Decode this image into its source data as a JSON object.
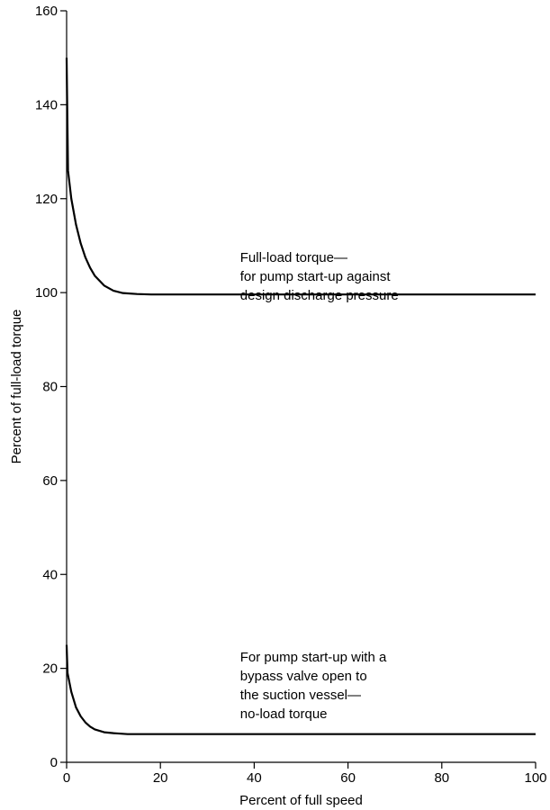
{
  "chart_data": {
    "type": "line",
    "title": "",
    "xlabel": "Percent of full speed",
    "ylabel": "Percent of full-load torque",
    "xlim": [
      0,
      100
    ],
    "ylim": [
      0,
      160
    ],
    "x_ticks": [
      0,
      20,
      40,
      60,
      80,
      100
    ],
    "y_ticks": [
      0,
      20,
      40,
      60,
      80,
      100,
      120,
      140,
      160
    ],
    "grid": false,
    "series": [
      {
        "points": [
          [
            0,
            150
          ],
          [
            0.3,
            126
          ],
          [
            1,
            120
          ],
          [
            2,
            114.5
          ],
          [
            3,
            110.5
          ],
          [
            4,
            107.5
          ],
          [
            5,
            105.3
          ],
          [
            6,
            103.6
          ],
          [
            8,
            101.5
          ],
          [
            10,
            100.4
          ],
          [
            12,
            99.9
          ],
          [
            15,
            99.7
          ],
          [
            18,
            99.6
          ],
          [
            20,
            99.6
          ],
          [
            40,
            99.6
          ],
          [
            60,
            99.6
          ],
          [
            80,
            99.6
          ],
          [
            100,
            99.6
          ]
        ]
      },
      {
        "points": [
          [
            0,
            25
          ],
          [
            0.2,
            19
          ],
          [
            1,
            15
          ],
          [
            2,
            11.7
          ],
          [
            3,
            9.8
          ],
          [
            4,
            8.5
          ],
          [
            5,
            7.6
          ],
          [
            6,
            7.0
          ],
          [
            8,
            6.4
          ],
          [
            10,
            6.2
          ],
          [
            13,
            6.0
          ],
          [
            16,
            6.0
          ],
          [
            20,
            6.0
          ],
          [
            40,
            6.0
          ],
          [
            60,
            6.0
          ],
          [
            80,
            6.0
          ],
          [
            100,
            6.0
          ]
        ]
      }
    ],
    "annotations": [
      {
        "lines": [
          "Full-load torque—",
          "for pump start-up against",
          "design discharge pressure"
        ],
        "x": 37,
        "y": 106.5
      },
      {
        "lines": [
          "For pump start-up with a",
          "bypass valve open to",
          "the suction vessel—",
          "no-load torque"
        ],
        "x": 37,
        "y": 21.5
      }
    ]
  }
}
